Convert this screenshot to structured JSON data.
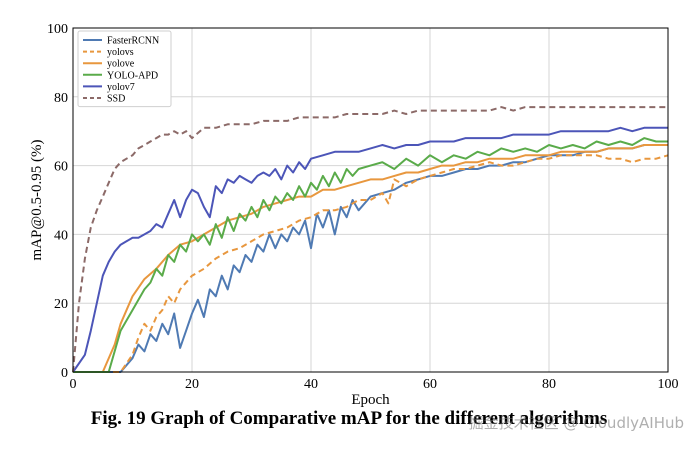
{
  "chart_data": {
    "type": "line",
    "title": "",
    "xlabel": "Epoch",
    "ylabel": "mAP@0.5-0.95 (%)",
    "xlim": [
      0,
      100
    ],
    "ylim": [
      0,
      100
    ],
    "xticks": [
      0,
      20,
      40,
      60,
      80,
      100
    ],
    "yticks": [
      0,
      20,
      40,
      60,
      80,
      100
    ],
    "grid": true,
    "legend_position": "top-left",
    "series": [
      {
        "name": "FasterRCNN",
        "color": "#4f7ab3",
        "dash": "solid",
        "x": [
          0,
          5,
          8,
          10,
          11,
          12,
          13,
          14,
          15,
          16,
          17,
          18,
          19,
          20,
          21,
          22,
          23,
          24,
          25,
          26,
          27,
          28,
          29,
          30,
          31,
          32,
          33,
          34,
          35,
          36,
          37,
          38,
          39,
          40,
          41,
          42,
          43,
          44,
          45,
          46,
          47,
          48,
          50,
          52,
          54,
          56,
          58,
          60,
          62,
          64,
          66,
          68,
          70,
          72,
          74,
          76,
          78,
          80,
          82,
          84,
          86,
          88,
          90,
          92,
          94,
          96,
          98,
          100
        ],
        "y": [
          0,
          0,
          0,
          4,
          8,
          6,
          11,
          9,
          14,
          11,
          17,
          7,
          12,
          17,
          21,
          16,
          24,
          22,
          28,
          24,
          31,
          29,
          34,
          32,
          37,
          35,
          40,
          36,
          40,
          38,
          42,
          40,
          44,
          36,
          46,
          42,
          47,
          40,
          48,
          45,
          50,
          47,
          51,
          52,
          53,
          55,
          56,
          57,
          57,
          58,
          59,
          59,
          60,
          60,
          61,
          61,
          62,
          63,
          63,
          63,
          64,
          64,
          65,
          65,
          65,
          66,
          66,
          66
        ]
      },
      {
        "name": "yolovs",
        "color": "#e8973e",
        "dash": "6,4",
        "x": [
          0,
          8,
          10,
          11,
          12,
          13,
          14,
          15,
          16,
          17,
          18,
          20,
          22,
          24,
          26,
          28,
          30,
          32,
          34,
          36,
          38,
          40,
          42,
          44,
          46,
          48,
          50,
          52,
          53,
          54,
          56,
          58,
          60,
          62,
          64,
          66,
          68,
          70,
          72,
          74,
          76,
          78,
          80,
          82,
          84,
          86,
          88,
          90,
          92,
          94,
          96,
          98,
          100
        ],
        "y": [
          0,
          0,
          5,
          10,
          14,
          12,
          16,
          18,
          22,
          20,
          24,
          28,
          30,
          33,
          35,
          36,
          38,
          40,
          41,
          42,
          44,
          45,
          47,
          47,
          48,
          50,
          50,
          52,
          49,
          56,
          54,
          56,
          57,
          58,
          59,
          59,
          60,
          61,
          60,
          60,
          61,
          62,
          62,
          63,
          63,
          63,
          63,
          62,
          62,
          61,
          62,
          62,
          63
        ]
      },
      {
        "name": "yolove",
        "color": "#e8973e",
        "dash": "solid",
        "x": [
          0,
          5,
          7,
          8,
          10,
          12,
          14,
          16,
          18,
          20,
          22,
          24,
          26,
          28,
          30,
          32,
          34,
          36,
          38,
          40,
          42,
          44,
          46,
          48,
          50,
          52,
          54,
          56,
          58,
          60,
          62,
          64,
          66,
          68,
          70,
          72,
          74,
          76,
          78,
          80,
          82,
          84,
          86,
          88,
          90,
          92,
          94,
          96,
          98,
          100
        ],
        "y": [
          0,
          0,
          8,
          14,
          22,
          27,
          30,
          34,
          37,
          38,
          40,
          42,
          44,
          45,
          46,
          48,
          49,
          50,
          51,
          51,
          53,
          53,
          54,
          55,
          56,
          56,
          57,
          58,
          58,
          59,
          60,
          60,
          61,
          61,
          62,
          62,
          62,
          63,
          63,
          63,
          64,
          64,
          64,
          64,
          65,
          65,
          65,
          66,
          66,
          66
        ]
      },
      {
        "name": "YOLO-APD",
        "color": "#5aab4a",
        "dash": "solid",
        "x": [
          0,
          6,
          8,
          10,
          12,
          13,
          14,
          15,
          16,
          17,
          18,
          19,
          20,
          21,
          22,
          23,
          24,
          25,
          26,
          27,
          28,
          29,
          30,
          31,
          32,
          33,
          34,
          35,
          36,
          37,
          38,
          39,
          40,
          41,
          42,
          43,
          44,
          45,
          46,
          47,
          48,
          50,
          52,
          54,
          56,
          58,
          60,
          62,
          64,
          66,
          68,
          70,
          72,
          74,
          76,
          78,
          80,
          82,
          84,
          86,
          88,
          90,
          92,
          94,
          96,
          98,
          100
        ],
        "y": [
          0,
          0,
          12,
          18,
          24,
          26,
          30,
          28,
          34,
          32,
          37,
          35,
          40,
          38,
          40,
          37,
          43,
          39,
          45,
          41,
          46,
          44,
          48,
          45,
          50,
          47,
          51,
          49,
          52,
          50,
          54,
          51,
          55,
          53,
          57,
          54,
          58,
          55,
          59,
          57,
          59,
          60,
          61,
          59,
          62,
          60,
          63,
          61,
          63,
          62,
          64,
          63,
          65,
          64,
          65,
          64,
          66,
          65,
          66,
          65,
          67,
          66,
          67,
          66,
          68,
          67,
          67
        ]
      },
      {
        "name": "yolov7",
        "color": "#4c55b8",
        "dash": "solid",
        "x": [
          0,
          2,
          3,
          4,
          5,
          6,
          7,
          8,
          9,
          10,
          11,
          12,
          13,
          14,
          15,
          16,
          17,
          18,
          19,
          20,
          21,
          22,
          23,
          24,
          25,
          26,
          27,
          28,
          29,
          30,
          31,
          32,
          33,
          34,
          35,
          36,
          37,
          38,
          39,
          40,
          42,
          44,
          46,
          48,
          50,
          52,
          54,
          56,
          58,
          60,
          62,
          64,
          66,
          68,
          70,
          72,
          74,
          76,
          78,
          80,
          82,
          84,
          86,
          88,
          90,
          92,
          94,
          96,
          98,
          100
        ],
        "y": [
          0,
          5,
          12,
          20,
          28,
          32,
          35,
          37,
          38,
          39,
          39,
          40,
          41,
          43,
          42,
          46,
          50,
          45,
          50,
          53,
          52,
          48,
          45,
          54,
          52,
          56,
          55,
          57,
          56,
          55,
          57,
          58,
          57,
          59,
          56,
          60,
          58,
          61,
          59,
          62,
          63,
          64,
          64,
          64,
          65,
          66,
          65,
          66,
          66,
          67,
          67,
          67,
          68,
          68,
          68,
          68,
          69,
          69,
          69,
          69,
          70,
          70,
          70,
          70,
          70,
          71,
          70,
          71,
          71,
          71
        ]
      },
      {
        "name": "SSD",
        "color": "#8c6a68",
        "dash": "6,4",
        "x": [
          0,
          1,
          2,
          3,
          4,
          5,
          6,
          7,
          8,
          9,
          10,
          11,
          12,
          13,
          14,
          15,
          16,
          17,
          18,
          19,
          20,
          22,
          24,
          26,
          28,
          30,
          32,
          34,
          36,
          38,
          40,
          42,
          44,
          46,
          48,
          50,
          52,
          54,
          56,
          58,
          60,
          62,
          64,
          66,
          68,
          70,
          72,
          74,
          76,
          78,
          80,
          82,
          84,
          86,
          88,
          90,
          92,
          94,
          96,
          98,
          100
        ],
        "y": [
          0,
          20,
          33,
          42,
          47,
          51,
          55,
          59,
          61,
          62,
          63,
          65,
          66,
          67,
          68,
          69,
          69,
          70,
          69,
          70,
          68,
          71,
          71,
          72,
          72,
          72,
          73,
          73,
          73,
          74,
          74,
          74,
          74,
          75,
          75,
          75,
          75,
          76,
          75,
          76,
          76,
          76,
          76,
          76,
          76,
          76,
          77,
          76,
          77,
          77,
          77,
          77,
          77,
          77,
          77,
          77,
          77,
          77,
          77,
          77,
          77
        ]
      }
    ]
  },
  "caption": "Fig. 19 Graph of Comparative mAP for the different algorithms",
  "watermark": "掘金技术社区 @ CloudlyAIHub"
}
